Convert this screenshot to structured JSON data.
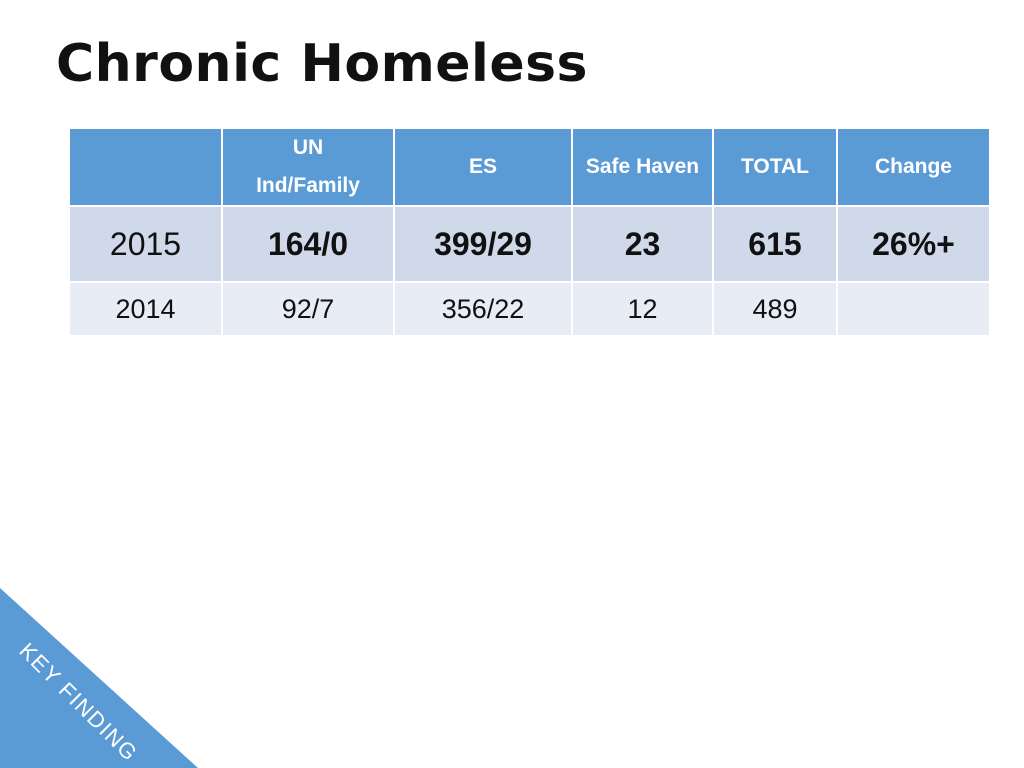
{
  "slide": {
    "title": "Chronic Homeless"
  },
  "table": {
    "headers": [
      "",
      "UN Ind/Family",
      "ES",
      "Safe Haven",
      "TOTAL",
      "Change"
    ],
    "header_un_line1": "UN",
    "header_un_line2": "Ind/Family",
    "rows": [
      {
        "year": "2015",
        "un": "164/0",
        "es": "399/29",
        "safe_haven": "23",
        "total": "615",
        "change": "26%+"
      },
      {
        "year": "2014",
        "un": "92/7",
        "es": "356/22",
        "safe_haven": "12",
        "total": "489",
        "change": ""
      }
    ]
  },
  "banner": {
    "text": "KEY FINDING"
  },
  "colors": {
    "header_bg": "#5b9bd5",
    "row_dark": "#cfd9ea",
    "row_light": "#e8ecf5",
    "banner": "#5b9bd5"
  }
}
